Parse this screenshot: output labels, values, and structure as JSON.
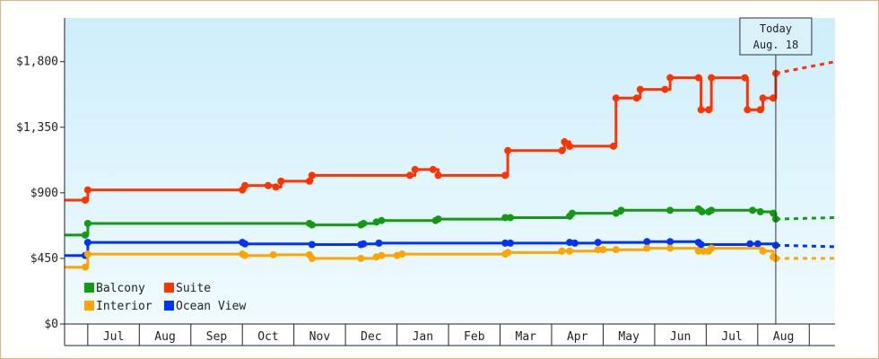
{
  "today_box": {
    "line1": "Today",
    "line2": "Aug. 18"
  },
  "chart_data": {
    "type": "line",
    "step": true,
    "y_tick_labels": [
      "$0",
      "$450",
      "$900",
      "$1,350",
      "$1,800"
    ],
    "y_ticks": [
      0,
      450,
      900,
      1350,
      1800
    ],
    "ylim": [
      0,
      2100
    ],
    "x_tick_labels": [
      "Jul",
      "Aug",
      "Sep",
      "Oct",
      "Nov",
      "Dec",
      "Jan",
      "Feb",
      "Mar",
      "Apr",
      "May",
      "Jun",
      "Jul",
      "Aug"
    ],
    "x_unit": "months since start of first month",
    "xlim": [
      -0.45,
      14.5
    ],
    "today_x": 13.35,
    "grid": false,
    "legend_position": "bottom-left",
    "series": [
      {
        "name": "Suite",
        "color": "#ff3300",
        "points": [
          [
            -0.45,
            850
          ],
          [
            -0.05,
            850
          ],
          [
            0.0,
            920
          ],
          [
            3.0,
            920
          ],
          [
            3.05,
            950
          ],
          [
            3.5,
            950
          ],
          [
            3.65,
            940
          ],
          [
            3.75,
            980
          ],
          [
            4.3,
            980
          ],
          [
            4.35,
            1020
          ],
          [
            6.25,
            1020
          ],
          [
            6.35,
            1060
          ],
          [
            6.7,
            1060
          ],
          [
            6.8,
            1020
          ],
          [
            8.1,
            1020
          ],
          [
            8.15,
            1190
          ],
          [
            9.2,
            1190
          ],
          [
            9.25,
            1250
          ],
          [
            9.35,
            1220
          ],
          [
            10.2,
            1220
          ],
          [
            10.25,
            1550
          ],
          [
            10.65,
            1550
          ],
          [
            10.72,
            1610
          ],
          [
            11.2,
            1610
          ],
          [
            11.3,
            1690
          ],
          [
            11.85,
            1690
          ],
          [
            11.9,
            1470
          ],
          [
            12.05,
            1470
          ],
          [
            12.1,
            1690
          ],
          [
            12.75,
            1690
          ],
          [
            12.8,
            1470
          ],
          [
            13.05,
            1470
          ],
          [
            13.1,
            1550
          ],
          [
            13.3,
            1550
          ],
          [
            13.35,
            1720
          ]
        ],
        "projection_end": [
          14.5,
          1800
        ]
      },
      {
        "name": "Balcony",
        "color": "#129a12",
        "points": [
          [
            -0.45,
            610
          ],
          [
            -0.05,
            610
          ],
          [
            0.0,
            690
          ],
          [
            4.3,
            690
          ],
          [
            4.35,
            680
          ],
          [
            5.3,
            680
          ],
          [
            5.35,
            690
          ],
          [
            5.6,
            700
          ],
          [
            5.7,
            710
          ],
          [
            6.75,
            710
          ],
          [
            6.8,
            720
          ],
          [
            8.1,
            730
          ],
          [
            8.2,
            730
          ],
          [
            9.35,
            740
          ],
          [
            9.4,
            760
          ],
          [
            10.25,
            760
          ],
          [
            10.35,
            780
          ],
          [
            11.3,
            780
          ],
          [
            11.85,
            790
          ],
          [
            11.92,
            770
          ],
          [
            12.05,
            770
          ],
          [
            12.1,
            780
          ],
          [
            12.9,
            780
          ],
          [
            13.05,
            770
          ],
          [
            13.3,
            760
          ],
          [
            13.35,
            720
          ]
        ],
        "projection_end": [
          14.5,
          730
        ]
      },
      {
        "name": "Ocean View",
        "color": "#0033ff",
        "points": [
          [
            -0.45,
            470
          ],
          [
            -0.05,
            470
          ],
          [
            0.0,
            560
          ],
          [
            3.0,
            560
          ],
          [
            3.05,
            550
          ],
          [
            4.35,
            545
          ],
          [
            5.3,
            545
          ],
          [
            5.35,
            550
          ],
          [
            5.65,
            555
          ],
          [
            8.1,
            555
          ],
          [
            8.2,
            555
          ],
          [
            9.35,
            560
          ],
          [
            9.45,
            555
          ],
          [
            9.9,
            560
          ],
          [
            10.85,
            565
          ],
          [
            11.3,
            565
          ],
          [
            11.85,
            560
          ],
          [
            11.9,
            545
          ],
          [
            12.85,
            550
          ],
          [
            13.0,
            550
          ],
          [
            13.35,
            540
          ]
        ],
        "projection_end": [
          14.5,
          530
        ]
      },
      {
        "name": "Interior",
        "color": "#ffa500",
        "points": [
          [
            -0.45,
            390
          ],
          [
            -0.05,
            390
          ],
          [
            0.0,
            480
          ],
          [
            3.0,
            480
          ],
          [
            3.05,
            470
          ],
          [
            3.6,
            475
          ],
          [
            4.3,
            475
          ],
          [
            4.35,
            450
          ],
          [
            5.3,
            450
          ],
          [
            5.6,
            460
          ],
          [
            5.7,
            470
          ],
          [
            6.0,
            470
          ],
          [
            6.1,
            480
          ],
          [
            8.1,
            480
          ],
          [
            8.15,
            490
          ],
          [
            9.2,
            500
          ],
          [
            9.35,
            500
          ],
          [
            9.9,
            510
          ],
          [
            10.0,
            510
          ],
          [
            10.25,
            510
          ],
          [
            10.85,
            520
          ],
          [
            11.3,
            520
          ],
          [
            11.85,
            500
          ],
          [
            11.95,
            500
          ],
          [
            12.05,
            500
          ],
          [
            12.1,
            520
          ],
          [
            13.1,
            500
          ],
          [
            13.3,
            460
          ],
          [
            13.35,
            450
          ]
        ],
        "projection_end": [
          14.5,
          450
        ]
      }
    ],
    "legend": [
      {
        "name": "Balcony",
        "color": "#129a12"
      },
      {
        "name": "Suite",
        "color": "#ff3300"
      },
      {
        "name": "Interior",
        "color": "#ffa500"
      },
      {
        "name": "Ocean View",
        "color": "#0033ff"
      }
    ]
  }
}
